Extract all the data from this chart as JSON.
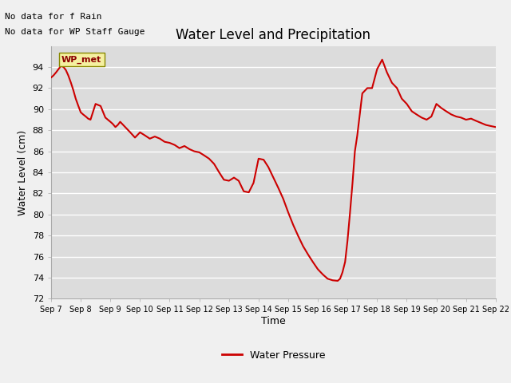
{
  "title": "Water Level and Precipitation",
  "xlabel": "Time",
  "ylabel": "Water Level (cm)",
  "ylim": [
    72,
    96
  ],
  "yticks": [
    72,
    74,
    76,
    78,
    80,
    82,
    84,
    86,
    88,
    90,
    92,
    94
  ],
  "line_color": "#cc0000",
  "line_width": 1.5,
  "background_color": "#dcdcdc",
  "plot_bg_color": "#dcdcdc",
  "no_data_text1": "No data for f Rain",
  "no_data_text2": "No data for WP Staff Gauge",
  "wp_met_label": "WP_met",
  "legend_label": "Water Pressure",
  "x_data": [
    7.0,
    7.08,
    7.17,
    7.25,
    7.33,
    7.42,
    7.5,
    7.58,
    7.67,
    7.75,
    7.83,
    7.92,
    8.0,
    8.08,
    8.17,
    8.25,
    8.33,
    8.5,
    8.67,
    8.83,
    9.0,
    9.08,
    9.17,
    9.25,
    9.33,
    9.5,
    9.67,
    9.83,
    10.0,
    10.17,
    10.33,
    10.5,
    10.67,
    10.83,
    11.0,
    11.17,
    11.33,
    11.5,
    11.67,
    11.83,
    12.0,
    12.17,
    12.33,
    12.5,
    12.67,
    12.83,
    13.0,
    13.17,
    13.33,
    13.5,
    13.67,
    13.83,
    14.0,
    14.17,
    14.33,
    14.5,
    14.67,
    14.83,
    15.0,
    15.17,
    15.33,
    15.5,
    15.67,
    15.83,
    16.0,
    16.17,
    16.33,
    16.5,
    16.67,
    16.75,
    16.83,
    16.92,
    17.0,
    17.08,
    17.17,
    17.25,
    17.33,
    17.5,
    17.67,
    17.83,
    18.0,
    18.17,
    18.33,
    18.5,
    18.67,
    18.83,
    19.0,
    19.17,
    19.33,
    19.5,
    19.67,
    19.83,
    20.0,
    20.17,
    20.33,
    20.5,
    20.67,
    20.83,
    21.0,
    21.17,
    21.33,
    21.5,
    21.67,
    21.83,
    22.0
  ],
  "y_data": [
    93.0,
    93.2,
    93.5,
    93.8,
    94.1,
    94.0,
    93.7,
    93.2,
    92.5,
    91.8,
    91.0,
    90.3,
    89.7,
    89.5,
    89.3,
    89.1,
    89.0,
    90.5,
    90.3,
    89.2,
    88.8,
    88.6,
    88.3,
    88.5,
    88.8,
    88.3,
    87.8,
    87.3,
    87.8,
    87.5,
    87.2,
    87.4,
    87.2,
    86.9,
    86.8,
    86.6,
    86.3,
    86.5,
    86.2,
    86.0,
    85.9,
    85.6,
    85.3,
    84.8,
    84.0,
    83.3,
    83.2,
    83.5,
    83.2,
    82.2,
    82.1,
    83.0,
    85.3,
    85.2,
    84.5,
    83.5,
    82.5,
    81.5,
    80.2,
    79.0,
    78.0,
    77.0,
    76.2,
    75.5,
    74.8,
    74.3,
    73.9,
    73.75,
    73.7,
    73.9,
    74.5,
    75.5,
    77.5,
    80.0,
    83.0,
    86.0,
    87.5,
    91.5,
    92.0,
    92.0,
    93.8,
    94.7,
    93.5,
    92.5,
    92.0,
    91.0,
    90.5,
    89.8,
    89.5,
    89.2,
    89.0,
    89.3,
    90.5,
    90.1,
    89.8,
    89.5,
    89.3,
    89.2,
    89.0,
    89.1,
    88.9,
    88.7,
    88.5,
    88.4,
    88.3
  ],
  "xtick_positions": [
    7,
    8,
    9,
    10,
    11,
    12,
    13,
    14,
    15,
    16,
    17,
    18,
    19,
    20,
    21,
    22
  ],
  "xtick_labels": [
    "Sep 7",
    "Sep 8",
    "Sep 9",
    "Sep 10",
    "Sep 11",
    "Sep 12",
    "Sep 13",
    "Sep 14",
    "Sep 15",
    "Sep 16",
    "Sep 17",
    "Sep 18",
    "Sep 19",
    "Sep 20",
    "Sep 21",
    "Sep 22"
  ]
}
